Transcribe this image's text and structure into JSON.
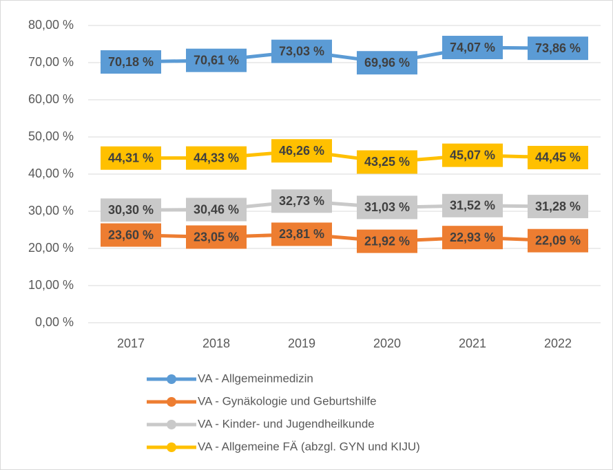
{
  "chart_data": {
    "type": "line",
    "categories": [
      "2017",
      "2018",
      "2019",
      "2020",
      "2021",
      "2022"
    ],
    "series": [
      {
        "name": "VA - Allgemeinmedizin",
        "color": "#5b9bd5",
        "values": [
          70.18,
          70.61,
          73.03,
          69.96,
          74.07,
          73.86
        ],
        "value_labels": [
          "70,18 %",
          "70,61 %",
          "73,03 %",
          "69,96 %",
          "74,07 %",
          "73,86 %"
        ]
      },
      {
        "name": "VA - Gynäkologie und Geburtshilfe",
        "color": "#ed7d31",
        "values": [
          23.6,
          23.05,
          23.81,
          21.92,
          22.93,
          22.09
        ],
        "value_labels": [
          "23,60 %",
          "23,05 %",
          "23,81 %",
          "21,92 %",
          "22,93 %",
          "22,09 %"
        ]
      },
      {
        "name": "VA - Kinder- und Jugendheilkunde",
        "color": "#c9c9c9",
        "values": [
          30.3,
          30.46,
          32.73,
          31.03,
          31.52,
          31.28
        ],
        "value_labels": [
          "30,30 %",
          "30,46 %",
          "32,73 %",
          "31,03 %",
          "31,52 %",
          "31,28 %"
        ]
      },
      {
        "name": "VA - Allgemeine FÄ (abzgl. GYN und KIJU)",
        "color": "#ffc000",
        "values": [
          44.31,
          44.33,
          46.26,
          43.25,
          45.07,
          44.45
        ],
        "value_labels": [
          "44,31 %",
          "44,33 %",
          "46,26 %",
          "43,25 %",
          "45,07 %",
          "44,45 %"
        ]
      }
    ],
    "ylim": [
      0,
      80
    ],
    "yticks": [
      {
        "value": 0,
        "label": "0,00 %"
      },
      {
        "value": 10,
        "label": "10,00 %"
      },
      {
        "value": 20,
        "label": "20,00 %"
      },
      {
        "value": 30,
        "label": "30,00 %"
      },
      {
        "value": 40,
        "label": "40,00 %"
      },
      {
        "value": 50,
        "label": "50,00 %"
      },
      {
        "value": 60,
        "label": "60,00 %"
      },
      {
        "value": 70,
        "label": "70,00 %"
      },
      {
        "value": 80,
        "label": "80,00 %"
      }
    ],
    "grid": true,
    "legend": "bottom"
  }
}
